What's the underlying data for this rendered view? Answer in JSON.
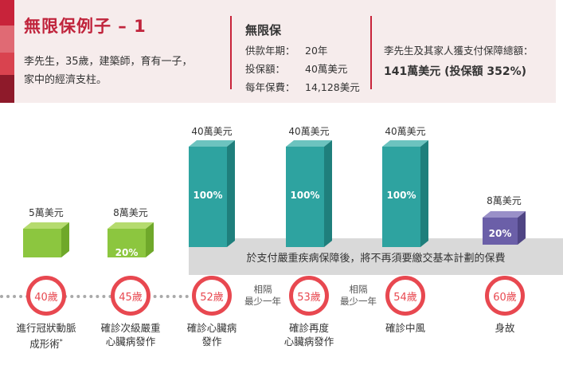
{
  "header": {
    "title": "無限保例子 – 1",
    "description_line1": "李先生，35歲，建築師，育有一子，",
    "description_line2": "家中的經濟支柱。"
  },
  "plan": {
    "name": "無限保",
    "rows": [
      {
        "label": "供款年期：",
        "value": "20年"
      },
      {
        "label": "投保額：",
        "value": "40萬美元"
      },
      {
        "label": "每年保費：",
        "value": "14,128美元"
      }
    ]
  },
  "total": {
    "label": "李先生及其家人獲支付保障總額：",
    "value": "141萬美元 (投保額 352%)"
  },
  "notice": "於支付嚴重疾病保障後，將不再須要繳交基本計劃的保費",
  "blocks": [
    {
      "amount": "5萬美元",
      "percent": "",
      "color": "#8cc63f"
    },
    {
      "amount": "8萬美元",
      "percent": "20%",
      "color": "#8cc63f"
    },
    {
      "amount": "40萬美元",
      "percent": "100%",
      "color": "#2ea3a0"
    },
    {
      "amount": "40萬美元",
      "percent": "100%",
      "color": "#2ea3a0"
    },
    {
      "amount": "40萬美元",
      "percent": "100%",
      "color": "#2ea3a0"
    },
    {
      "amount": "8萬美元",
      "percent": "20%",
      "color": "#6b5fa8"
    }
  ],
  "timeline": {
    "ages": [
      "40歲",
      "45歲",
      "52歲",
      "53歲",
      "54歲",
      "60歲"
    ],
    "gap_line1": "相隔",
    "gap_line2": "最少一年",
    "events": [
      {
        "line1": "進行冠狀動脈",
        "line2": "成形術",
        "sup": "*"
      },
      {
        "line1": "確診次級嚴重",
        "line2": "心臟病發作"
      },
      {
        "line1": "確診心臟病",
        "line2": "發作"
      },
      {
        "line1": "確診再度",
        "line2": "心臟病發作"
      },
      {
        "line1": "確診中風",
        "line2": ""
      },
      {
        "line1": "身故",
        "line2": ""
      }
    ]
  }
}
